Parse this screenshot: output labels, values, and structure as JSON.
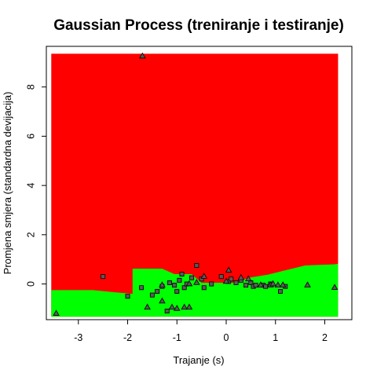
{
  "chart_data": {
    "type": "scatter",
    "title": "Gaussian Process (treniranje i testiranje)",
    "xlabel": "Trajanje (s)",
    "ylabel": "Promjena smjera (standardna devijacija)",
    "xlim": [
      -3.65,
      2.55
    ],
    "ylim": [
      -1.45,
      9.65
    ],
    "x_ticks": [
      "-3",
      "-2",
      "-1",
      "0",
      "1",
      "2"
    ],
    "x_tick_values": [
      -3,
      -2,
      -1,
      0,
      1,
      2
    ],
    "y_ticks": [
      "0",
      "2",
      "4",
      "6",
      "8"
    ],
    "y_tick_values": [
      0,
      2,
      4,
      6,
      8
    ],
    "grid": false,
    "legend": "none",
    "background_regions": {
      "class_a_color": "#ff0000",
      "class_b_color": "#00ff00",
      "extent_x": [
        -3.55,
        2.27
      ],
      "extent_y": [
        -1.33,
        9.35
      ],
      "boundary": [
        [
          -3.55,
          -0.25
        ],
        [
          -2.7,
          -0.25
        ],
        [
          -2.3,
          -0.33
        ],
        [
          -1.9,
          -0.4
        ],
        [
          -1.9,
          0.62
        ],
        [
          -1.3,
          0.62
        ],
        [
          -1.05,
          0.4
        ],
        [
          -0.7,
          0.4
        ],
        [
          -0.5,
          0.05
        ],
        [
          0.2,
          0.05
        ],
        [
          0.45,
          0.25
        ],
        [
          0.85,
          0.38
        ],
        [
          1.25,
          0.58
        ],
        [
          1.6,
          0.75
        ],
        [
          2.2,
          0.8
        ],
        [
          2.27,
          0.82
        ]
      ]
    },
    "series": [
      {
        "marker": "square",
        "points": [
          [
            -2.5,
            0.3
          ],
          [
            -2.0,
            -0.5
          ],
          [
            -1.72,
            -0.15
          ],
          [
            -1.5,
            -0.45
          ],
          [
            -1.4,
            -0.3
          ],
          [
            -1.3,
            -0.1
          ],
          [
            -1.2,
            -1.1
          ],
          [
            -1.15,
            0.05
          ],
          [
            -1.05,
            -0.05
          ],
          [
            -1.0,
            -0.3
          ],
          [
            -0.95,
            0.15
          ],
          [
            -0.9,
            0.4
          ],
          [
            -0.85,
            -0.15
          ],
          [
            -0.8,
            0.0
          ],
          [
            -0.7,
            0.25
          ],
          [
            -0.6,
            0.75
          ],
          [
            -0.5,
            0.2
          ],
          [
            -0.45,
            -0.15
          ],
          [
            -0.3,
            0.0
          ],
          [
            -0.1,
            0.3
          ],
          [
            0.05,
            0.1
          ],
          [
            0.1,
            0.2
          ],
          [
            0.2,
            0.05
          ],
          [
            0.3,
            0.15
          ],
          [
            0.4,
            -0.05
          ],
          [
            0.5,
            0.05
          ],
          [
            0.55,
            -0.1
          ],
          [
            0.6,
            -0.05
          ],
          [
            0.75,
            -0.05
          ],
          [
            0.9,
            0.0
          ],
          [
            1.1,
            -0.3
          ],
          [
            1.2,
            -0.1
          ],
          [
            0.8,
            -0.1
          ]
        ]
      },
      {
        "marker": "triangle",
        "points": [
          [
            -3.45,
            -1.2
          ],
          [
            -1.7,
            9.25
          ],
          [
            -1.6,
            -0.95
          ],
          [
            -1.3,
            -0.7
          ],
          [
            -1.3,
            -0.05
          ],
          [
            -1.1,
            -0.95
          ],
          [
            -1.0,
            -1.0
          ],
          [
            -0.85,
            -0.95
          ],
          [
            -0.75,
            -0.95
          ],
          [
            -0.75,
            0.0
          ],
          [
            -0.6,
            0.05
          ],
          [
            -0.45,
            0.3
          ],
          [
            0.0,
            0.1
          ],
          [
            0.05,
            0.55
          ],
          [
            0.3,
            0.25
          ],
          [
            0.45,
            0.2
          ],
          [
            0.7,
            -0.05
          ],
          [
            0.9,
            -0.05
          ],
          [
            1.05,
            -0.05
          ],
          [
            1.15,
            -0.05
          ],
          [
            1.65,
            -0.05
          ],
          [
            2.2,
            -0.15
          ],
          [
            0.95,
            0.0
          ]
        ]
      }
    ]
  }
}
